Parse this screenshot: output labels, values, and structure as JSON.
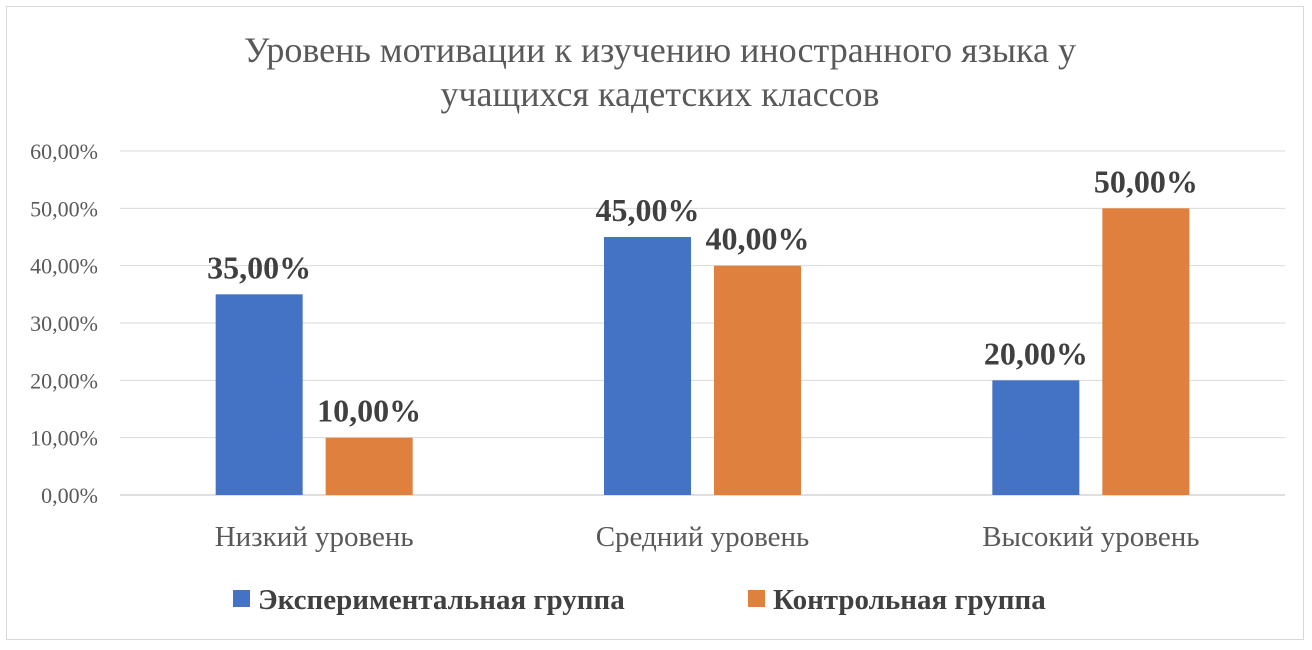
{
  "chart_data": {
    "type": "bar",
    "title_lines": [
      "Уровень мотивации к изучению иностранного языка у",
      "учащихся кадетских классов"
    ],
    "categories": [
      "Низкий уровень",
      "Средний уровень",
      "Высокий уровень"
    ],
    "series": [
      {
        "name": "Экспериментальная группа",
        "color": "#4472c4",
        "values": [
          35,
          45,
          20
        ],
        "labels": [
          "35,00%",
          "45,00%",
          "20,00%"
        ]
      },
      {
        "name": "Контрольная группа",
        "color": "#e0803f",
        "values": [
          10,
          40,
          50
        ],
        "labels": [
          "10,00%",
          "40,00%",
          "50,00%"
        ]
      }
    ],
    "y_ticks": [
      {
        "value": 0,
        "label": "0,00%"
      },
      {
        "value": 10,
        "label": "10,00%"
      },
      {
        "value": 20,
        "label": "20,00%"
      },
      {
        "value": 30,
        "label": "30,00%"
      },
      {
        "value": 40,
        "label": "40,00%"
      },
      {
        "value": 50,
        "label": "50,00%"
      },
      {
        "value": 60,
        "label": "60,00%"
      }
    ],
    "ylim": [
      0,
      60
    ],
    "grid": true,
    "legend_position": "bottom"
  }
}
